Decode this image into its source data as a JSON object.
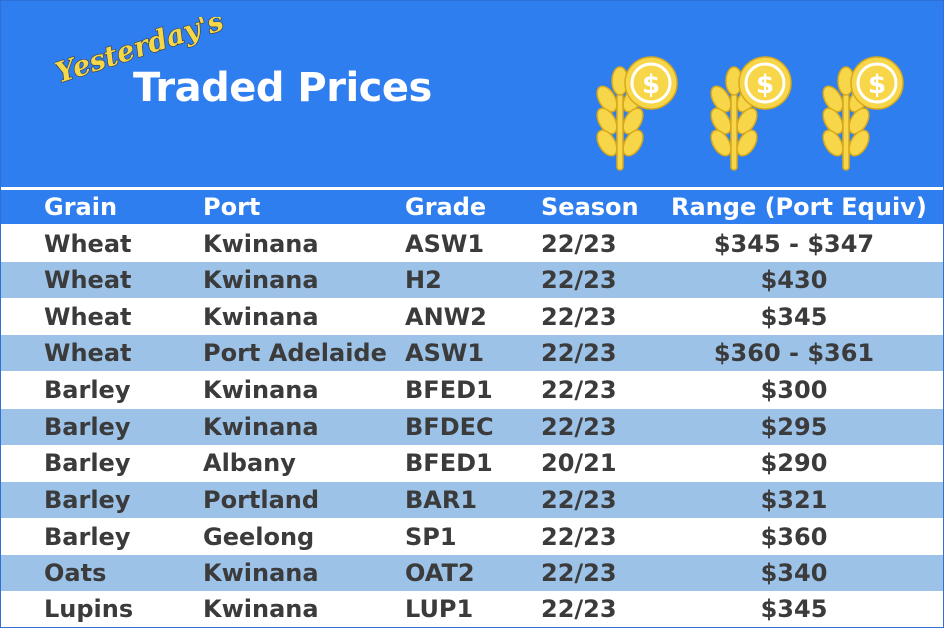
{
  "header": {
    "script_title": "Yesterday's",
    "main_title": "Traded Prices",
    "icons": [
      "wheat-dollar-icon",
      "wheat-dollar-icon",
      "wheat-dollar-icon"
    ],
    "colors": {
      "banner": "#2f7ef0",
      "script_text": "#f5d84a",
      "icon_fill": "#f7d64a",
      "alt_row": "#9cc2e8",
      "body_text": "#3b3b3b"
    }
  },
  "table": {
    "columns": [
      "Grain",
      "Port",
      "Grade",
      "Season",
      "Range (Port Equiv)"
    ],
    "rows": [
      {
        "grain": "Wheat",
        "port": "Kwinana",
        "grade": "ASW1",
        "season": "22/23",
        "range": "$345 - $347"
      },
      {
        "grain": "Wheat",
        "port": "Kwinana",
        "grade": "H2",
        "season": "22/23",
        "range": "$430"
      },
      {
        "grain": "Wheat",
        "port": "Kwinana",
        "grade": "ANW2",
        "season": "22/23",
        "range": "$345"
      },
      {
        "grain": "Wheat",
        "port": "Port Adelaide",
        "grade": "ASW1",
        "season": "22/23",
        "range": "$360 - $361"
      },
      {
        "grain": "Barley",
        "port": "Kwinana",
        "grade": "BFED1",
        "season": "22/23",
        "range": "$300"
      },
      {
        "grain": "Barley",
        "port": "Kwinana",
        "grade": "BFDEC",
        "season": "22/23",
        "range": "$295"
      },
      {
        "grain": "Barley",
        "port": "Albany",
        "grade": "BFED1",
        "season": "20/21",
        "range": "$290"
      },
      {
        "grain": "Barley",
        "port": "Portland",
        "grade": "BAR1",
        "season": "22/23",
        "range": "$321"
      },
      {
        "grain": "Barley",
        "port": "Geelong",
        "grade": "SP1",
        "season": "22/23",
        "range": "$360"
      },
      {
        "grain": "Oats",
        "port": "Kwinana",
        "grade": "OAT2",
        "season": "22/23",
        "range": "$340"
      },
      {
        "grain": "Lupins",
        "port": "Kwinana",
        "grade": "LUP1",
        "season": "22/23",
        "range": "$345"
      }
    ]
  }
}
